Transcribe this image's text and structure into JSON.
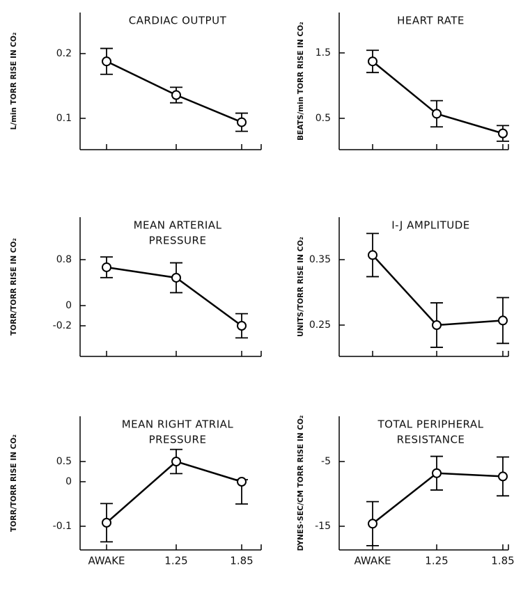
{
  "chart_data": [
    {
      "type": "line",
      "title": [
        "CARDIAC OUTPUT"
      ],
      "y_label": "L/min TORR RISE IN CO₂",
      "categories": [
        null,
        null,
        null
      ],
      "values": [
        0.188,
        0.136,
        0.094
      ],
      "errors": [
        0.02,
        0.012,
        0.014
      ],
      "color": "#000000",
      "ylim": [
        0.05,
        0.26
      ],
      "yticks": [
        0.1,
        0.2
      ]
    },
    {
      "type": "line",
      "title": [
        "HEART RATE"
      ],
      "y_label": "BEATS/min TORR RISE IN CO₂",
      "categories": [
        null,
        null,
        null
      ],
      "values": [
        1.37,
        0.57,
        0.27
      ],
      "errors": [
        0.17,
        0.2,
        0.12
      ],
      "color": "#000000",
      "ylim": [
        0,
        2.1
      ],
      "yticks": [
        0.5,
        1.5
      ]
    },
    {
      "type": "line",
      "title": [
        "MEAN ARTERIAL",
        "PRESSURE"
      ],
      "y_label": "TORR/TORR RISE IN CO₂",
      "categories": [
        null,
        null,
        null
      ],
      "values": [
        0.667,
        0.485,
        -0.2
      ],
      "errors": [
        0.18,
        0.26,
        0.12
      ],
      "color": "#000000",
      "ylim": [
        -0.5,
        1.5
      ],
      "yticks": [
        -0.2,
        0,
        0.8
      ]
    },
    {
      "type": "line",
      "title": [
        "I-J AMPLITUDE"
      ],
      "y_label": "UNITS/TORR RISE IN CO₂",
      "categories": [
        null,
        null,
        null
      ],
      "values": [
        0.357,
        0.25,
        0.257
      ],
      "errors": [
        0.033,
        0.034,
        0.035
      ],
      "color": "#000000",
      "ylim": [
        0.2,
        0.415
      ],
      "yticks": [
        0.25,
        0.35
      ]
    },
    {
      "type": "line",
      "title": [
        "MEAN RIGHT ATRIAL",
        "PRESSURE"
      ],
      "y_label": "TORR/TORR RISE IN CO₂",
      "categories": [
        "AWAKE",
        "1.25",
        "1.85"
      ],
      "values": [
        -0.092,
        0.5,
        0
      ],
      "errors": [
        0.043,
        0.3,
        0.05
      ],
      "color": "#000000",
      "ylim": [
        -0.15,
        1.6
      ],
      "yticks": [
        -0.1,
        0,
        0.5
      ]
    },
    {
      "type": "line",
      "title": [
        "TOTAL PERIPHERAL",
        "RESISTANCE"
      ],
      "y_label": "DYNES·SEC/CM TORR RISE IN CO₂",
      "categories": [
        "AWAKE",
        "1.25",
        "1.85"
      ],
      "values": [
        -14.6,
        -6.8,
        -7.3
      ],
      "errors": [
        3.4,
        2.6,
        3
      ],
      "color": "#000000",
      "ylim": [
        -18.7,
        2
      ],
      "yticks": [
        -15,
        -5
      ]
    }
  ]
}
